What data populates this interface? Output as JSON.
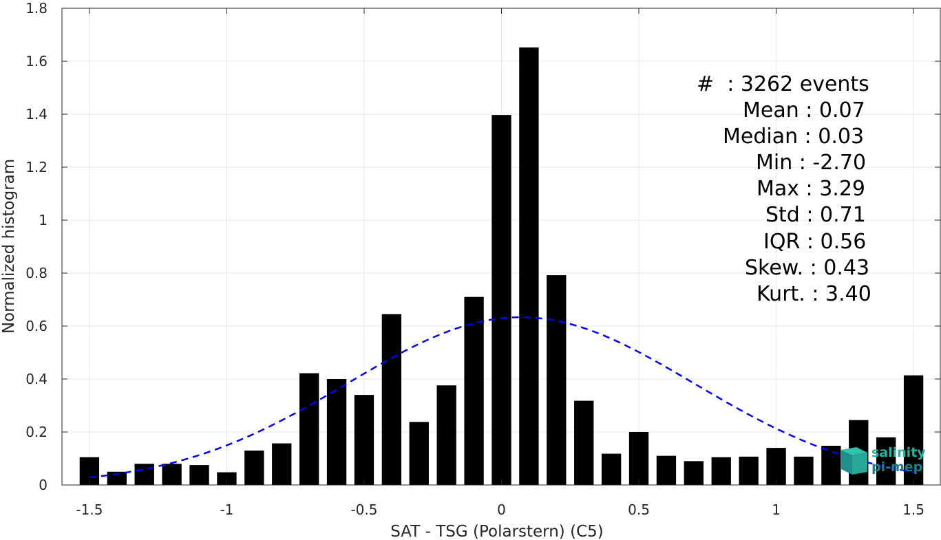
{
  "chart_data": {
    "type": "bar",
    "xlabel": "SAT - TSG (Polarstern) (C5)",
    "ylabel": "Normalized histogram",
    "xlim": [
      -1.6,
      1.6
    ],
    "ylim": [
      0,
      1.8
    ],
    "xticks": [
      -1.5,
      -1,
      -0.5,
      0,
      0.5,
      1,
      1.5
    ],
    "xtick_labels": [
      "-1.5",
      "-1",
      "-0.5",
      "0",
      "0.5",
      "1",
      "1.5"
    ],
    "yticks": [
      0,
      0.2,
      0.4,
      0.6,
      0.8,
      1,
      1.2,
      1.4,
      1.6,
      1.8
    ],
    "ytick_labels": [
      "0",
      "0.2",
      "0.4",
      "0.6",
      "0.8",
      "1",
      "1.2",
      "1.4",
      "1.6",
      "1.8"
    ],
    "grid": true,
    "bin_width": 0.1,
    "bar_color": "#000000",
    "bins": [
      -1.5,
      -1.4,
      -1.3,
      -1.2,
      -1.1,
      -1.0,
      -0.9,
      -0.8,
      -0.7,
      -0.6,
      -0.5,
      -0.4,
      -0.3,
      -0.2,
      -0.1,
      0.0,
      0.1,
      0.2,
      0.3,
      0.4,
      0.5,
      0.6,
      0.7,
      0.8,
      0.9,
      1.0,
      1.1,
      1.2,
      1.3,
      1.4,
      1.5
    ],
    "values": [
      0.105,
      0.05,
      0.08,
      0.08,
      0.075,
      0.048,
      0.13,
      0.157,
      0.422,
      0.4,
      0.34,
      0.645,
      0.238,
      0.376,
      0.71,
      1.397,
      1.652,
      0.792,
      0.318,
      0.118,
      0.2,
      0.11,
      0.09,
      0.105,
      0.107,
      0.14,
      0.107,
      0.148,
      0.245,
      0.18,
      0.414
    ],
    "fit_curve": {
      "type": "normal",
      "mean": 0.07,
      "std": 0.63,
      "color": "#0000ff",
      "style": "dashed",
      "x_range": [
        -1.5,
        1.5
      ]
    },
    "stats": [
      "#  : 3262 events",
      "Mean : 0.07",
      "Median : 0.03",
      "Min : -2.70",
      "Max : 3.29",
      "Std : 0.71",
      "IQR : 0.56",
      "Skew. : 0.43",
      "Kurt. : 3.40"
    ]
  },
  "logo": {
    "line1": "salinity",
    "line2": "pi-mep",
    "colors": [
      "#26b5a0",
      "#1f7f8a"
    ]
  }
}
